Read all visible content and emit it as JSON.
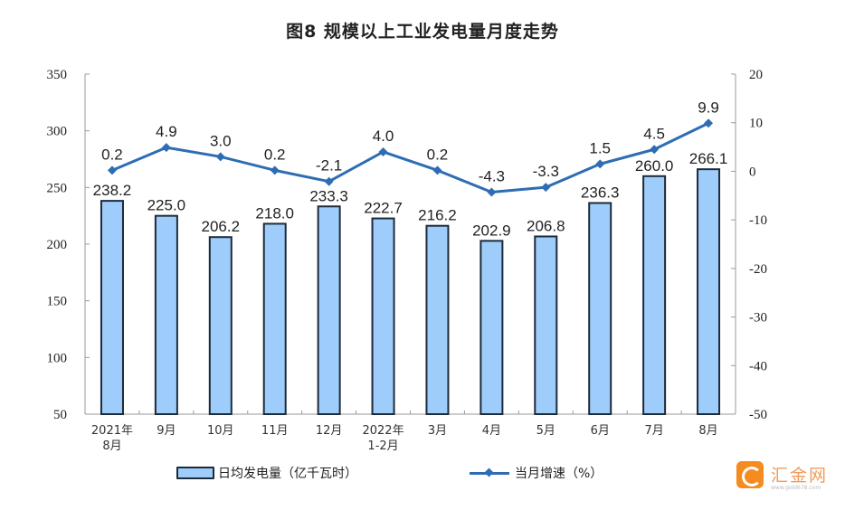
{
  "title": "图8  规模以上工业发电量月度走势",
  "chart_data": {
    "type": "bar+line",
    "title": "图8 规模以上工业发电量月度走势",
    "categories": [
      [
        "2021年",
        "8月"
      ],
      [
        "9月"
      ],
      [
        "10月"
      ],
      [
        "11月"
      ],
      [
        "12月"
      ],
      [
        "2022年",
        "1-2月"
      ],
      [
        "3月"
      ],
      [
        "4月"
      ],
      [
        "5月"
      ],
      [
        "6月"
      ],
      [
        "7月"
      ],
      [
        "8月"
      ]
    ],
    "category_labels": [
      "2021年8月",
      "9月",
      "10月",
      "11月",
      "12月",
      "2022年1-2月",
      "3月",
      "4月",
      "5月",
      "6月",
      "7月",
      "8月"
    ],
    "series": [
      {
        "name": "日均发电量（亿千瓦时）",
        "type": "bar",
        "axis": "left",
        "color": "#9fcdfb",
        "edge_color": "#1c2a3a",
        "values": [
          238.2,
          225.0,
          206.2,
          218.0,
          233.3,
          222.7,
          216.2,
          202.9,
          206.8,
          236.3,
          260.0,
          266.1
        ],
        "labels": [
          "238.2",
          "225.0",
          "206.2",
          "218.0",
          "233.3",
          "222.7",
          "216.2",
          "202.9",
          "206.8",
          "236.3",
          "260.0",
          "266.1"
        ]
      },
      {
        "name": "当月增速（%）",
        "type": "line",
        "axis": "right",
        "color": "#2e6db4",
        "marker": "diamond",
        "values": [
          0.2,
          4.9,
          3.0,
          0.2,
          -2.1,
          4.0,
          0.2,
          -4.3,
          -3.3,
          1.5,
          4.5,
          9.9
        ],
        "labels": [
          "0.2",
          "4.9",
          "3.0",
          "0.2",
          "-2.1",
          "4.0",
          "0.2",
          "-4.3",
          "-3.3",
          "1.5",
          "4.5",
          "9.9"
        ]
      }
    ],
    "y_left": {
      "range": [
        50,
        350
      ],
      "ticks": [
        50,
        100,
        150,
        200,
        250,
        300,
        350
      ]
    },
    "y_right": {
      "range": [
        -50,
        20
      ],
      "ticks": [
        -50,
        -40,
        -30,
        -20,
        -10,
        0,
        10,
        20
      ]
    },
    "xlabel": "",
    "ylabel": "",
    "grid": false,
    "legend_position": "bottom"
  },
  "legend": {
    "bar_label": "日均发电量（亿千瓦时）",
    "line_label": "当月增速（%）"
  },
  "watermark": {
    "name": "汇金网",
    "url": "www.gold678.com"
  }
}
